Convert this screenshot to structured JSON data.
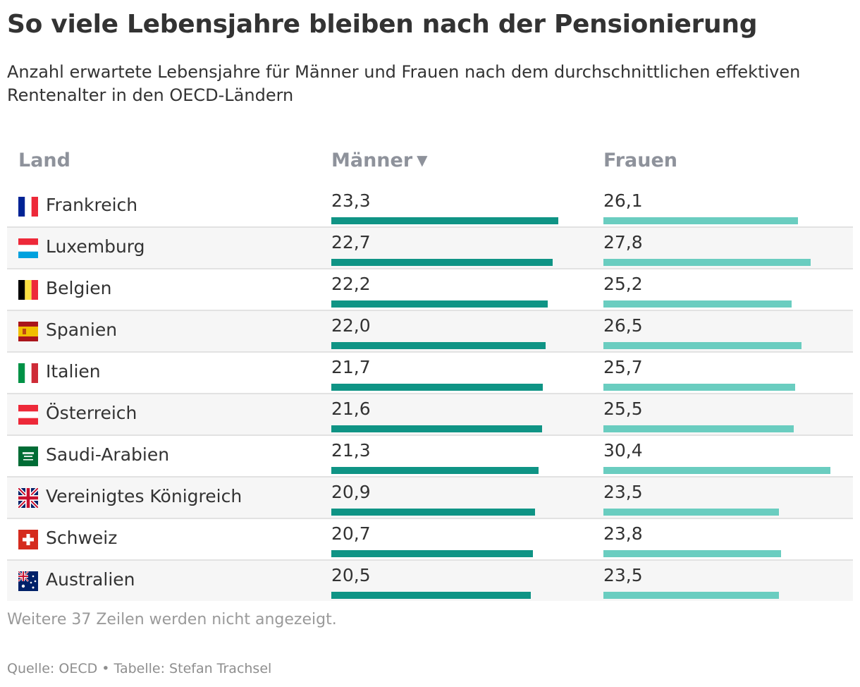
{
  "title": "So viele Lebensjahre bleiben nach der Pensionierung",
  "subtitle": "Anzahl erwartete Lebensjahre für Männer und Frauen nach dem durchschnittlichen effektiven Rentenalter in den OECD-Ländern",
  "columns": {
    "land": "Land",
    "maenner": "Männer",
    "frauen": "Frauen",
    "sort_indicator": "▼"
  },
  "footer": {
    "more_rows": "Weitere 37 Zeilen werden nicht angezeigt.",
    "source": "Quelle: OECD • Tabelle: Stefan Trachsel"
  },
  "colors": {
    "maenner_bar": "#0f9485",
    "frauen_bar": "#6acdc0",
    "header_text": "#8e929b"
  },
  "chart_data": {
    "type": "table",
    "bar_max": 30.4,
    "rows": [
      {
        "country": "Frankreich",
        "flag": "france-flag-icon",
        "maenner": "23,3",
        "frauen": "26,1",
        "m": 23.3,
        "f": 26.1
      },
      {
        "country": "Luxemburg",
        "flag": "luxembourg-flag-icon",
        "maenner": "22,7",
        "frauen": "27,8",
        "m": 22.7,
        "f": 27.8
      },
      {
        "country": "Belgien",
        "flag": "belgium-flag-icon",
        "maenner": "22,2",
        "frauen": "25,2",
        "m": 22.2,
        "f": 25.2
      },
      {
        "country": "Spanien",
        "flag": "spain-flag-icon",
        "maenner": "22,0",
        "frauen": "26,5",
        "m": 22.0,
        "f": 26.5
      },
      {
        "country": "Italien",
        "flag": "italy-flag-icon",
        "maenner": "21,7",
        "frauen": "25,7",
        "m": 21.7,
        "f": 25.7
      },
      {
        "country": "Österreich",
        "flag": "austria-flag-icon",
        "maenner": "21,6",
        "frauen": "25,5",
        "m": 21.6,
        "f": 25.5
      },
      {
        "country": "Saudi-Arabien",
        "flag": "saudi-arabia-flag-icon",
        "maenner": "21,3",
        "frauen": "30,4",
        "m": 21.3,
        "f": 30.4
      },
      {
        "country": "Vereinigtes Königreich",
        "flag": "uk-flag-icon",
        "maenner": "20,9",
        "frauen": "23,5",
        "m": 20.9,
        "f": 23.5
      },
      {
        "country": "Schweiz",
        "flag": "switzerland-flag-icon",
        "maenner": "20,7",
        "frauen": "23,8",
        "m": 20.7,
        "f": 23.8
      },
      {
        "country": "Australien",
        "flag": "australia-flag-icon",
        "maenner": "20,5",
        "frauen": "23,5",
        "m": 20.5,
        "f": 23.5
      }
    ]
  }
}
